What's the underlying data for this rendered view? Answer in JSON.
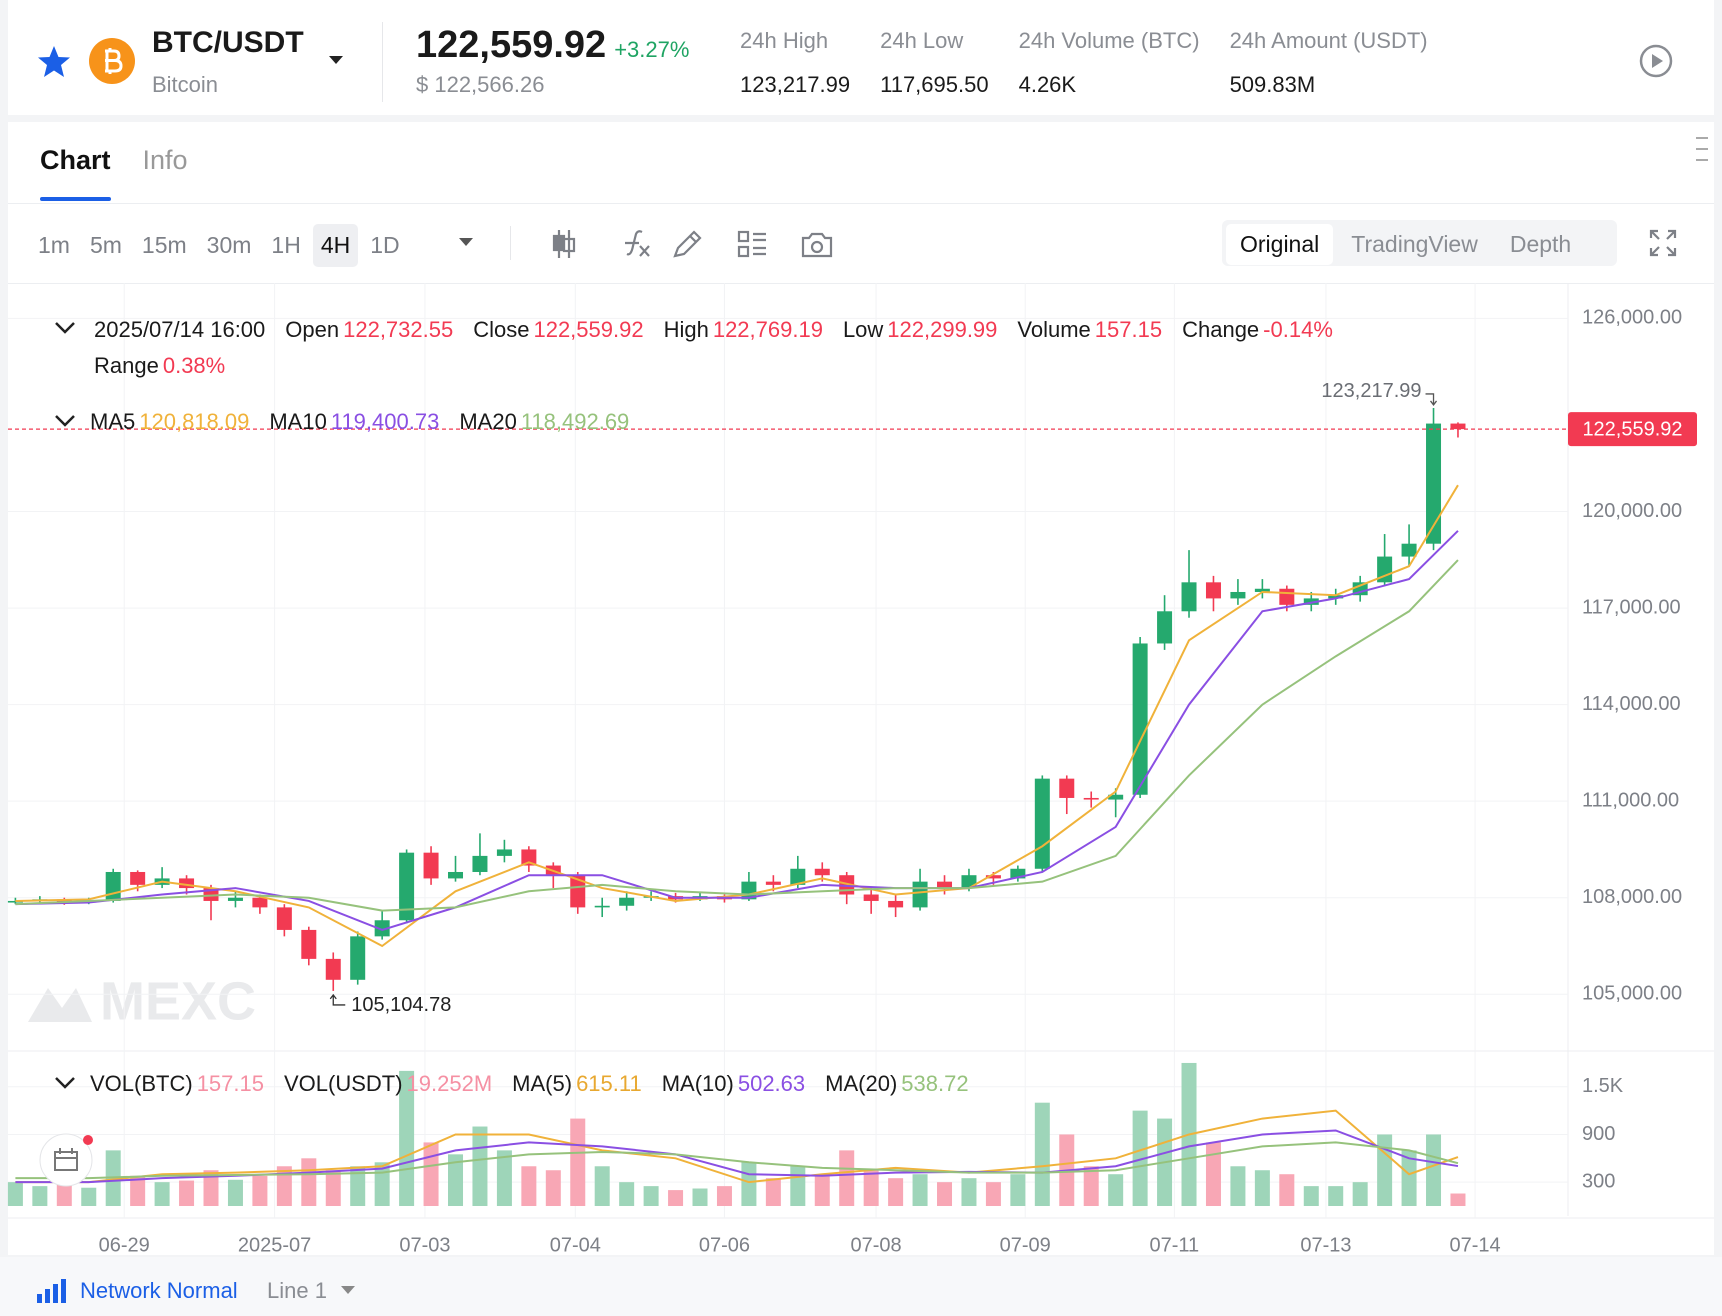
{
  "header": {
    "pair": "BTC/USDT",
    "name": "Bitcoin",
    "price": "122,559.92",
    "change": "+3.27%",
    "price_usd": "$ 122,566.26",
    "stats": [
      {
        "label": "24h High",
        "value": "123,217.99"
      },
      {
        "label": "24h Low",
        "value": "117,695.50"
      },
      {
        "label": "24h Volume (BTC)",
        "value": "4.26K"
      },
      {
        "label": "24h Amount (USDT)",
        "value": "509.83M"
      }
    ]
  },
  "tabs": [
    "Chart",
    "Info"
  ],
  "intervals": [
    "1m",
    "5m",
    "15m",
    "30m",
    "1H",
    "4H",
    "1D"
  ],
  "selected_interval": "4H",
  "views": [
    "Original",
    "TradingView",
    "Depth"
  ],
  "selected_view": "Original",
  "footer": {
    "status": "Network Normal",
    "line": "Line 1"
  },
  "chart_data": {
    "type": "candlestick",
    "up_color": "#25a96e",
    "down_color": "#f23a52",
    "up_volume_color": "#9ed5b9",
    "down_volume_color": "#f8a7b5",
    "grid": true,
    "watermark": "MEXC",
    "ohlc_info": {
      "date": "2025/07/14 16:00",
      "items": [
        {
          "label": "Open",
          "value": "122,732.55",
          "color": "#f23a52"
        },
        {
          "label": "Close",
          "value": "122,559.92",
          "color": "#f23a52"
        },
        {
          "label": "High",
          "value": "122,769.19",
          "color": "#f23a52"
        },
        {
          "label": "Low",
          "value": "122,299.99",
          "color": "#f23a52"
        },
        {
          "label": "Volume",
          "value": "157.15",
          "color": "#f23a52"
        },
        {
          "label": "Change",
          "value": "-0.14%",
          "color": "#f23a52"
        },
        {
          "label": "Range",
          "value": "0.38%",
          "color": "#f23a52"
        }
      ]
    },
    "xlim": [
      -0.63,
      63.5
    ],
    "xticks": [
      {
        "value": 4.45,
        "label": "06-29"
      },
      {
        "value": 10.6,
        "label": "2025-07"
      },
      {
        "value": 16.75,
        "label": "07-03"
      },
      {
        "value": 22.9,
        "label": "07-04"
      },
      {
        "value": 29,
        "label": "07-06"
      },
      {
        "value": 35.2,
        "label": "07-08"
      },
      {
        "value": 41.3,
        "label": "07-09"
      },
      {
        "value": 47.4,
        "label": "07-11"
      },
      {
        "value": 53.6,
        "label": "07-13"
      },
      {
        "value": 59.7,
        "label": "07-14"
      }
    ],
    "ylim": [
      103300,
      127100
    ],
    "yticks": [
      {
        "value": 105000,
        "label": "105,000.00"
      },
      {
        "value": 108000,
        "label": "108,000.00"
      },
      {
        "value": 111000,
        "label": "111,000.00"
      },
      {
        "value": 114000,
        "label": "114,000.00"
      },
      {
        "value": 117000,
        "label": "117,000.00"
      },
      {
        "value": 120000,
        "label": "120,000.00"
      },
      {
        "value": 126000,
        "label": "126,000.00"
      }
    ],
    "last_price": 122559.92,
    "last_price_label": "122,559.92",
    "annotations": [
      {
        "text": "123,217.99",
        "x": 58,
        "y": 123217.99
      },
      {
        "text": "105,104.78",
        "x": 13,
        "y": 105104.78
      }
    ],
    "candles": [
      [
        107850,
        108000,
        107800,
        107900
      ],
      [
        107900,
        108050,
        107850,
        107950
      ],
      [
        107950,
        108000,
        107780,
        107850
      ],
      [
        107850,
        108000,
        107800,
        107900
      ],
      [
        107900,
        108900,
        107850,
        108800
      ],
      [
        108800,
        108850,
        108200,
        108400
      ],
      [
        108400,
        108950,
        108300,
        108600
      ],
      [
        108600,
        108700,
        108100,
        108300
      ],
      [
        108300,
        108400,
        107300,
        107900
      ],
      [
        107900,
        108200,
        107700,
        108000
      ],
      [
        108000,
        108100,
        107500,
        107700
      ],
      [
        107700,
        107800,
        106800,
        107000
      ],
      [
        107000,
        107100,
        105900,
        106100
      ],
      [
        106100,
        106300,
        105104.78,
        105450
      ],
      [
        105450,
        106950,
        105300,
        106800
      ],
      [
        106800,
        107600,
        106700,
        107300
      ],
      [
        107300,
        109500,
        107200,
        109400
      ],
      [
        109400,
        109600,
        108400,
        108600
      ],
      [
        108600,
        109300,
        108500,
        108800
      ],
      [
        108800,
        110000,
        108700,
        109300
      ],
      [
        109300,
        109800,
        109100,
        109500
      ],
      [
        109500,
        109600,
        108800,
        109000
      ],
      [
        109000,
        109100,
        108300,
        108700
      ],
      [
        108700,
        108800,
        107500,
        107700
      ],
      [
        107700,
        108000,
        107400,
        107750
      ],
      [
        107750,
        108200,
        107600,
        108000
      ],
      [
        108000,
        108200,
        107900,
        108050
      ],
      [
        108050,
        108150,
        107850,
        107950
      ],
      [
        107950,
        108150,
        107900,
        108050
      ],
      [
        108050,
        108100,
        107850,
        107950
      ],
      [
        107950,
        108800,
        107900,
        108500
      ],
      [
        108500,
        108700,
        108200,
        108400
      ],
      [
        108400,
        109300,
        108300,
        108900
      ],
      [
        108900,
        109100,
        108500,
        108700
      ],
      [
        108700,
        108800,
        107800,
        108100
      ],
      [
        108100,
        108300,
        107500,
        107900
      ],
      [
        107900,
        108100,
        107400,
        107700
      ],
      [
        107700,
        108900,
        107600,
        108500
      ],
      [
        108500,
        108700,
        108100,
        108300
      ],
      [
        108300,
        108900,
        108200,
        108700
      ],
      [
        108700,
        108800,
        108400,
        108600
      ],
      [
        108600,
        109000,
        108500,
        108900
      ],
      [
        108900,
        111800,
        108800,
        111700
      ],
      [
        111700,
        111800,
        110600,
        111100
      ],
      [
        111100,
        111300,
        110800,
        111050
      ],
      [
        111050,
        111400,
        110500,
        111200
      ],
      [
        111200,
        116100,
        111100,
        115900
      ],
      [
        115900,
        117400,
        115700,
        116900
      ],
      [
        116900,
        118800,
        116700,
        117800
      ],
      [
        117800,
        118000,
        116900,
        117300
      ],
      [
        117300,
        117900,
        117100,
        117500
      ],
      [
        117500,
        117900,
        117300,
        117600
      ],
      [
        117600,
        117700,
        116900,
        117100
      ],
      [
        117100,
        117500,
        116900,
        117300
      ],
      [
        117300,
        117600,
        117100,
        117400
      ],
      [
        117400,
        118000,
        117200,
        117800
      ],
      [
        117800,
        119300,
        117700,
        118600
      ],
      [
        118600,
        119600,
        118300,
        119000
      ],
      [
        119000,
        123217.99,
        118800,
        122732.55
      ],
      [
        122732.55,
        122769.19,
        122299.99,
        122559.92
      ]
    ],
    "ma_x": [
      0,
      3,
      6,
      9,
      12,
      15,
      18,
      21,
      24,
      27,
      30,
      33,
      36,
      39,
      42,
      45,
      48,
      51,
      54,
      57,
      59
    ],
    "ma_series": [
      {
        "name": "MA5",
        "color": "#f0b23a",
        "value_label": "120,818.09",
        "values": [
          107900,
          107950,
          108500,
          108200,
          107700,
          106500,
          108200,
          109100,
          108300,
          107900,
          108100,
          108600,
          108100,
          108300,
          109600,
          111300,
          116000,
          117500,
          117400,
          118300,
          120818.09
        ]
      },
      {
        "name": "MA10",
        "color": "#8a4fe3",
        "value_label": "119,400.73",
        "values": [
          107800,
          107850,
          108100,
          108300,
          107900,
          107000,
          107700,
          108700,
          108700,
          108000,
          108000,
          108400,
          108300,
          108300,
          108800,
          110200,
          114000,
          116900,
          117300,
          117900,
          119400.73
        ]
      },
      {
        "name": "MA20",
        "color": "#96c27c",
        "value_label": "118,492.69",
        "values": [
          107800,
          107900,
          108000,
          108100,
          108000,
          107600,
          107700,
          108200,
          108400,
          108200,
          108100,
          108200,
          108300,
          108300,
          108500,
          109300,
          111800,
          114000,
          115500,
          116900,
          118492.69
        ]
      }
    ],
    "volume": {
      "ylim": [
        0,
        1900
      ],
      "yticks": [
        300,
        900,
        {
          "value": 1500,
          "label": "1.5K"
        }
      ],
      "values": [
        300,
        250,
        280,
        230,
        700,
        380,
        300,
        320,
        450,
        330,
        380,
        500,
        600,
        450,
        500,
        550,
        1700,
        800,
        650,
        1000,
        700,
        500,
        450,
        1100,
        500,
        300,
        250,
        200,
        220,
        250,
        550,
        350,
        500,
        400,
        700,
        450,
        350,
        400,
        300,
        350,
        300,
        400,
        1300,
        900,
        500,
        400,
        1200,
        1100,
        1800,
        800,
        500,
        450,
        400,
        250,
        250,
        300,
        900,
        700,
        900,
        157.15
      ],
      "info": [
        {
          "label": "VOL(BTC)",
          "value": "157.15",
          "color": "#f590a3"
        },
        {
          "label": "VOL(USDT)",
          "value": "19.252M",
          "color": "#f590a3"
        },
        {
          "label": "MA(5)",
          "value": "615.11",
          "color": "#e8a830"
        },
        {
          "label": "MA(10)",
          "value": "502.63",
          "color": "#8a4fe3"
        },
        {
          "label": "MA(20)",
          "value": "538.72",
          "color": "#96c27c"
        }
      ],
      "ma_series": [
        {
          "name": "MA(5)",
          "color": "#f0b23a",
          "values": [
            300,
            300,
            400,
            420,
            450,
            500,
            900,
            900,
            700,
            600,
            300,
            400,
            480,
            420,
            500,
            600,
            900,
            1100,
            1200,
            400,
            615.11
          ]
        },
        {
          "name": "MA(10)",
          "color": "#8a4fe3",
          "values": [
            300,
            300,
            350,
            380,
            420,
            470,
            700,
            800,
            750,
            650,
            400,
            380,
            420,
            430,
            420,
            500,
            750,
            900,
            950,
            600,
            502.63
          ]
        },
        {
          "name": "MA(20)",
          "color": "#96c27c",
          "values": [
            350,
            350,
            380,
            390,
            400,
            420,
            550,
            650,
            680,
            650,
            550,
            480,
            450,
            420,
            420,
            450,
            600,
            750,
            800,
            700,
            538.72
          ]
        }
      ]
    }
  }
}
